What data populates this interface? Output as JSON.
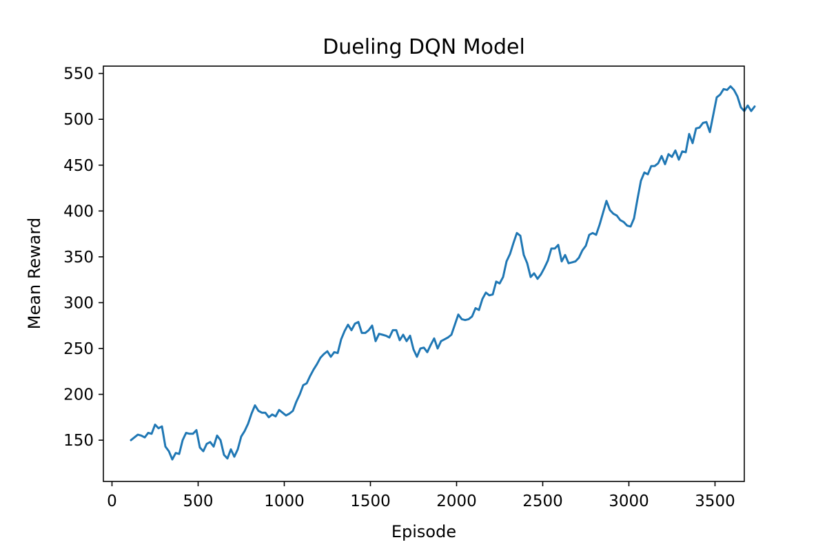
{
  "chart_data": {
    "type": "line",
    "title": "Dueling DQN Model",
    "xlabel": "Episode",
    "ylabel": "Mean Reward",
    "xlim": [
      -50,
      3670
    ],
    "ylim": [
      105,
      558
    ],
    "x_ticks": [
      0,
      500,
      1000,
      1500,
      2000,
      2500,
      3000,
      3500
    ],
    "y_ticks": [
      150,
      200,
      250,
      300,
      350,
      400,
      450,
      500,
      550
    ],
    "grid": false,
    "line_color": "#1f77b4",
    "series": [
      {
        "points": [
          [
            110,
            150
          ],
          [
            130,
            153
          ],
          [
            150,
            156
          ],
          [
            170,
            155
          ],
          [
            190,
            153
          ],
          [
            210,
            158
          ],
          [
            230,
            157
          ],
          [
            250,
            167
          ],
          [
            270,
            163
          ],
          [
            290,
            165
          ],
          [
            310,
            143
          ],
          [
            330,
            138
          ],
          [
            350,
            129
          ],
          [
            370,
            136
          ],
          [
            390,
            135
          ],
          [
            410,
            150
          ],
          [
            430,
            158
          ],
          [
            450,
            157
          ],
          [
            470,
            157
          ],
          [
            490,
            161
          ],
          [
            510,
            142
          ],
          [
            530,
            138
          ],
          [
            550,
            146
          ],
          [
            570,
            148
          ],
          [
            590,
            143
          ],
          [
            610,
            155
          ],
          [
            630,
            150
          ],
          [
            650,
            134
          ],
          [
            670,
            130
          ],
          [
            690,
            140
          ],
          [
            710,
            132
          ],
          [
            730,
            140
          ],
          [
            750,
            154
          ],
          [
            770,
            160
          ],
          [
            790,
            168
          ],
          [
            810,
            179
          ],
          [
            830,
            188
          ],
          [
            850,
            182
          ],
          [
            870,
            180
          ],
          [
            890,
            180
          ],
          [
            910,
            175
          ],
          [
            930,
            178
          ],
          [
            950,
            176
          ],
          [
            970,
            183
          ],
          [
            990,
            180
          ],
          [
            1010,
            177
          ],
          [
            1030,
            179
          ],
          [
            1050,
            182
          ],
          [
            1070,
            192
          ],
          [
            1090,
            200
          ],
          [
            1110,
            210
          ],
          [
            1130,
            212
          ],
          [
            1150,
            220
          ],
          [
            1170,
            227
          ],
          [
            1190,
            233
          ],
          [
            1210,
            240
          ],
          [
            1230,
            244
          ],
          [
            1250,
            247
          ],
          [
            1270,
            241
          ],
          [
            1290,
            246
          ],
          [
            1310,
            245
          ],
          [
            1330,
            260
          ],
          [
            1350,
            269
          ],
          [
            1370,
            276
          ],
          [
            1390,
            270
          ],
          [
            1410,
            277
          ],
          [
            1430,
            279
          ],
          [
            1450,
            267
          ],
          [
            1470,
            267
          ],
          [
            1490,
            270
          ],
          [
            1510,
            275
          ],
          [
            1530,
            258
          ],
          [
            1550,
            266
          ],
          [
            1570,
            265
          ],
          [
            1590,
            264
          ],
          [
            1610,
            262
          ],
          [
            1630,
            270
          ],
          [
            1650,
            270
          ],
          [
            1670,
            259
          ],
          [
            1690,
            265
          ],
          [
            1710,
            258
          ],
          [
            1730,
            264
          ],
          [
            1750,
            249
          ],
          [
            1770,
            241
          ],
          [
            1790,
            250
          ],
          [
            1810,
            251
          ],
          [
            1830,
            246
          ],
          [
            1850,
            254
          ],
          [
            1870,
            261
          ],
          [
            1890,
            250
          ],
          [
            1910,
            258
          ],
          [
            1930,
            260
          ],
          [
            1950,
            262
          ],
          [
            1970,
            265
          ],
          [
            1990,
            276
          ],
          [
            2010,
            287
          ],
          [
            2030,
            282
          ],
          [
            2050,
            281
          ],
          [
            2070,
            282
          ],
          [
            2090,
            285
          ],
          [
            2110,
            294
          ],
          [
            2130,
            292
          ],
          [
            2150,
            304
          ],
          [
            2170,
            311
          ],
          [
            2190,
            308
          ],
          [
            2210,
            309
          ],
          [
            2230,
            323
          ],
          [
            2250,
            321
          ],
          [
            2270,
            328
          ],
          [
            2290,
            345
          ],
          [
            2310,
            353
          ],
          [
            2330,
            365
          ],
          [
            2350,
            376
          ],
          [
            2370,
            373
          ],
          [
            2390,
            352
          ],
          [
            2410,
            343
          ],
          [
            2430,
            328
          ],
          [
            2450,
            332
          ],
          [
            2470,
            326
          ],
          [
            2490,
            331
          ],
          [
            2510,
            338
          ],
          [
            2530,
            346
          ],
          [
            2550,
            359
          ],
          [
            2570,
            359
          ],
          [
            2590,
            363
          ],
          [
            2610,
            345
          ],
          [
            2630,
            352
          ],
          [
            2650,
            343
          ],
          [
            2670,
            344
          ],
          [
            2690,
            345
          ],
          [
            2710,
            349
          ],
          [
            2730,
            357
          ],
          [
            2750,
            362
          ],
          [
            2770,
            374
          ],
          [
            2790,
            376
          ],
          [
            2810,
            374
          ],
          [
            2830,
            385
          ],
          [
            2850,
            398
          ],
          [
            2870,
            411
          ],
          [
            2890,
            401
          ],
          [
            2910,
            397
          ],
          [
            2930,
            395
          ],
          [
            2950,
            390
          ],
          [
            2970,
            388
          ],
          [
            2990,
            384
          ],
          [
            3010,
            383
          ],
          [
            3030,
            392
          ],
          [
            3050,
            413
          ],
          [
            3070,
            433
          ],
          [
            3090,
            442
          ],
          [
            3110,
            440
          ],
          [
            3130,
            449
          ],
          [
            3150,
            449
          ],
          [
            3170,
            452
          ],
          [
            3190,
            460
          ],
          [
            3210,
            451
          ],
          [
            3230,
            462
          ],
          [
            3250,
            459
          ],
          [
            3270,
            466
          ],
          [
            3290,
            456
          ],
          [
            3310,
            465
          ],
          [
            3330,
            464
          ],
          [
            3350,
            484
          ],
          [
            3370,
            474
          ],
          [
            3390,
            490
          ],
          [
            3410,
            491
          ],
          [
            3430,
            496
          ],
          [
            3450,
            497
          ],
          [
            3470,
            486
          ],
          [
            3490,
            505
          ],
          [
            3510,
            524
          ],
          [
            3530,
            527
          ],
          [
            3550,
            533
          ],
          [
            3570,
            532
          ],
          [
            3590,
            536
          ],
          [
            3610,
            532
          ],
          [
            3630,
            525
          ],
          [
            3650,
            513
          ],
          [
            3670,
            509
          ],
          [
            3690,
            515
          ],
          [
            3710,
            509
          ],
          [
            3730,
            514
          ]
        ]
      }
    ]
  }
}
